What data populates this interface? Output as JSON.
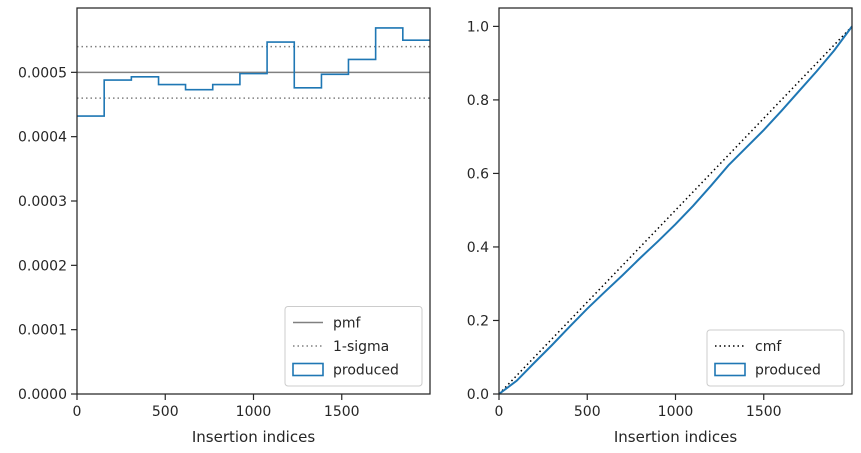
{
  "chart_data": [
    {
      "type": "step",
      "xlabel": "Insertion indices",
      "ylabel": "",
      "xlim": [
        0,
        2000
      ],
      "ylim": [
        0,
        0.0006
      ],
      "xticks": [
        0,
        500,
        1000,
        1500
      ],
      "yticks": [
        0.0,
        0.0001,
        0.0002,
        0.0003,
        0.0004,
        0.0005
      ],
      "ytick_labels": [
        "0.0000",
        "0.0001",
        "0.0002",
        "0.0003",
        "0.0004",
        "0.0005"
      ],
      "legend_position": "lower right",
      "grid": false,
      "reference_lines": [
        {
          "name": "pmf",
          "y": 0.0005,
          "style": "solid",
          "color": "#808080"
        },
        {
          "name": "1-sigma",
          "y": 0.00054,
          "style": "dotted",
          "color": "#808080"
        },
        {
          "name": "1-sigma",
          "y": 0.00046,
          "style": "dotted",
          "color": "#808080"
        }
      ],
      "series": [
        {
          "name": "produced",
          "color": "#1f77b4",
          "bin_edges": [
            0,
            154,
            308,
            462,
            615,
            769,
            923,
            1077,
            1231,
            1385,
            1538,
            1692,
            1846,
            2000
          ],
          "values": [
            0.000432,
            0.000488,
            0.000493,
            0.000481,
            0.000473,
            0.000481,
            0.000498,
            0.000547,
            0.000476,
            0.000497,
            0.00052,
            0.000569,
            0.00055
          ]
        }
      ],
      "legend": [
        "pmf",
        "1-sigma",
        "produced"
      ]
    },
    {
      "type": "line",
      "xlabel": "Insertion indices",
      "ylabel": "",
      "xlim": [
        0,
        2000
      ],
      "ylim": [
        0,
        1.05
      ],
      "xticks": [
        0,
        500,
        1000,
        1500
      ],
      "yticks": [
        0.0,
        0.2,
        0.4,
        0.6,
        0.8,
        1.0
      ],
      "ytick_labels": [
        "0.0",
        "0.2",
        "0.4",
        "0.6",
        "0.8",
        "1.0"
      ],
      "legend_position": "lower right",
      "grid": false,
      "series": [
        {
          "name": "cmf",
          "color": "#000000",
          "style": "dotted",
          "x": [
            0,
            2000
          ],
          "y": [
            0,
            1.0
          ]
        },
        {
          "name": "produced",
          "color": "#1f77b4",
          "x": [
            0,
            100,
            200,
            300,
            400,
            500,
            600,
            700,
            800,
            900,
            1000,
            1100,
            1200,
            1300,
            1400,
            1500,
            1600,
            1700,
            1800,
            1900,
            2000
          ],
          "y": [
            0,
            0.036,
            0.085,
            0.133,
            0.183,
            0.232,
            0.278,
            0.323,
            0.37,
            0.415,
            0.462,
            0.512,
            0.566,
            0.622,
            0.67,
            0.718,
            0.77,
            0.824,
            0.878,
            0.935,
            1.0
          ]
        }
      ],
      "legend": [
        "cmf",
        "produced"
      ]
    }
  ]
}
